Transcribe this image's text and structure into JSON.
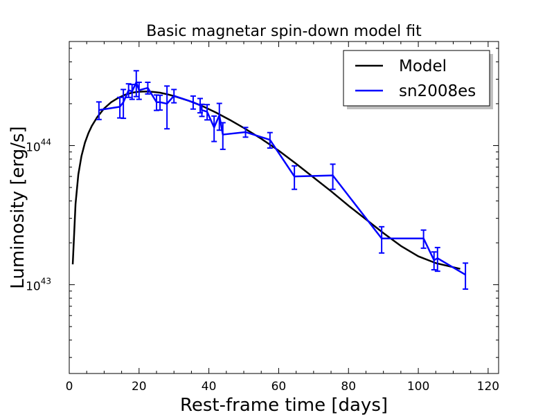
{
  "chart_data": {
    "type": "line",
    "title": "Basic magnetar spin-down model fit",
    "xlabel": "Rest-frame time [days]",
    "ylabel": "Luminosity [erg/s]",
    "xlim": [
      0,
      123
    ],
    "ylim": [
      2.3e+42,
      5.6e+44
    ],
    "yscale": "log",
    "grid": false,
    "legend_position": "top-right",
    "x_ticks": [
      "0",
      "20",
      "40",
      "60",
      "80",
      "100",
      "120"
    ],
    "y_ticks": [
      {
        "base": "10",
        "exp": "43",
        "value": 1e+43
      },
      {
        "base": "10",
        "exp": "44",
        "value": 1e+44
      }
    ],
    "series": [
      {
        "name": "Model",
        "color": "#000000",
        "style": "line",
        "x": [
          1,
          1.8,
          2.6,
          3.5,
          4.5,
          5.5,
          6.5,
          8,
          10,
          12,
          14,
          16,
          18,
          20,
          22,
          24,
          26,
          28,
          30,
          34,
          38,
          42,
          46,
          50,
          55,
          60,
          65,
          70,
          75,
          80,
          85,
          90,
          95,
          100,
          105,
          112
        ],
        "y": [
          1.4e+43,
          3.8e+43,
          6.2e+43,
          8.4e+43,
          1.05e+44,
          1.23e+44,
          1.39e+44,
          1.6e+44,
          1.85e+44,
          2.05e+44,
          2.2e+44,
          2.32e+44,
          2.4e+44,
          2.44e+44,
          2.45e+44,
          2.43e+44,
          2.4e+44,
          2.34e+44,
          2.27e+44,
          2.11e+44,
          1.93e+44,
          1.73e+44,
          1.53e+44,
          1.34e+44,
          1.12e+44,
          9.2e+43,
          7.4e+43,
          5.9e+43,
          4.7e+43,
          3.7e+43,
          2.95e+43,
          2.35e+43,
          1.9e+43,
          1.6e+43,
          1.43e+43,
          1.3e+43
        ]
      },
      {
        "name": "sn2008es",
        "color": "#0000ff",
        "style": "line-errorbar",
        "x": [
          8.5,
          14.5,
          15.5,
          17,
          18,
          19.2,
          20,
          22.5,
          25,
          26,
          28,
          30,
          35.5,
          37.5,
          38,
          39.5,
          41.5,
          43,
          44,
          50.5,
          57.5,
          64.5,
          75.5,
          89.5,
          101.5,
          104.5,
          105.5,
          113.5
        ],
        "y": [
          1.8e+44,
          1.9e+44,
          2.05e+44,
          2.5e+44,
          2.45e+44,
          2.85e+44,
          2.5e+44,
          2.6e+44,
          2.05e+44,
          2.05e+44,
          2e+44,
          2.28e+44,
          2.05e+44,
          1.95e+44,
          1.8e+44,
          1.75e+44,
          1.35e+44,
          1.65e+44,
          1.2e+44,
          1.25e+44,
          1.1e+44,
          6e+43,
          6.1e+43,
          2.15e+43,
          2.15e+43,
          1.5e+43,
          1.55e+43,
          1.18e+43
        ],
        "err": [
          2.6e+43,
          3.2e+43,
          4.8e+43,
          2.8e+43,
          3e+43,
          6e+43,
          3.5e+43,
          2.5e+43,
          2.6e+43,
          2.5e+43,
          6.8e+43,
          2.5e+43,
          2.2e+43,
          2.3e+43,
          1.8e+43,
          2.2e+43,
          2.8e+43,
          3.6e+43,
          2.6e+43,
          1e+43,
          1.4e+43,
          1.15e+43,
          1.25e+43,
          4.6e+42,
          3.2e+42,
          2.2e+42,
          3e+42,
          2.5e+42
        ]
      }
    ]
  }
}
